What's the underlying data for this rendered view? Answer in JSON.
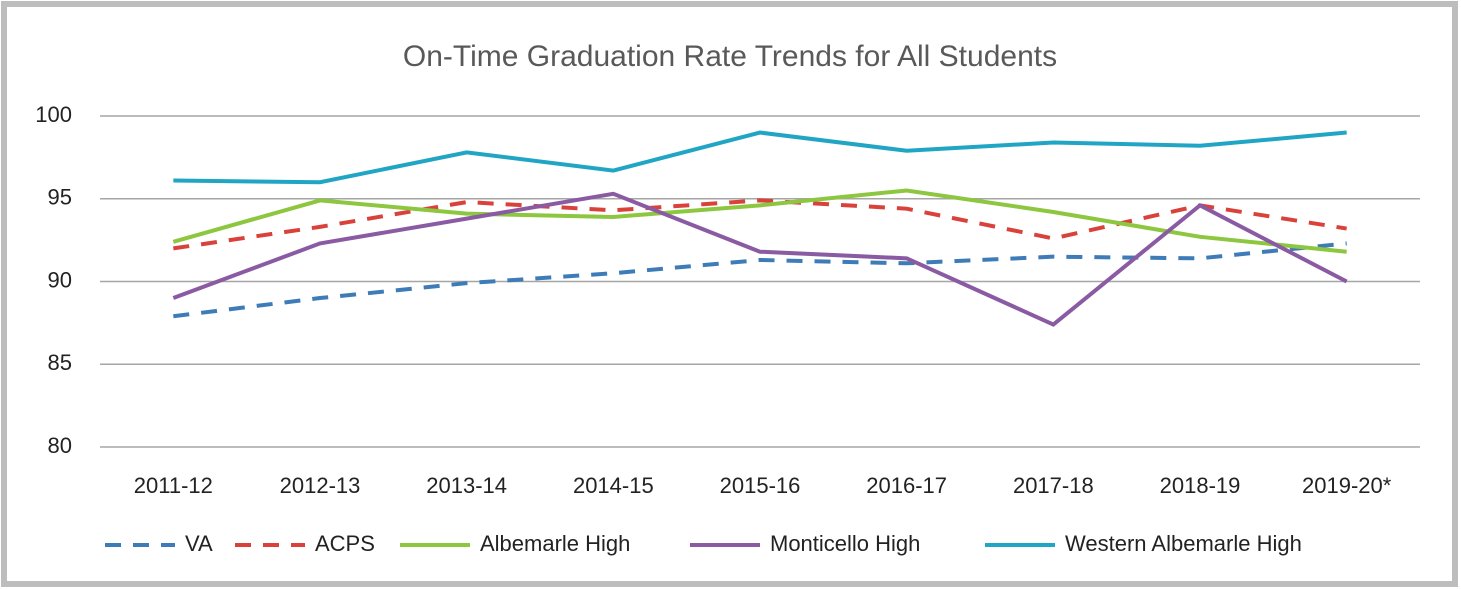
{
  "chart_data": {
    "type": "line",
    "title": "On-Time Graduation Rate Trends for All Students",
    "categories": [
      "2011-12",
      "2012-13",
      "2013-14",
      "2014-15",
      "2015-16",
      "2016-17",
      "2017-18",
      "2018-19",
      "2019-20*"
    ],
    "series": [
      {
        "name": "VA",
        "color": "#3e7cb8",
        "dashed": true,
        "values": [
          87.9,
          89.0,
          89.9,
          90.5,
          91.3,
          91.1,
          91.5,
          91.4,
          92.3
        ]
      },
      {
        "name": "ACPS",
        "color": "#d9423b",
        "dashed": true,
        "values": [
          92.0,
          93.3,
          94.8,
          94.3,
          94.9,
          94.4,
          92.6,
          94.6,
          93.2
        ]
      },
      {
        "name": "Albemarle High",
        "color": "#8dc63f",
        "dashed": false,
        "values": [
          92.4,
          94.9,
          94.1,
          93.9,
          94.6,
          95.5,
          94.2,
          92.7,
          91.8
        ]
      },
      {
        "name": "Monticello High",
        "color": "#8a5ba3",
        "dashed": false,
        "values": [
          89.0,
          92.3,
          93.8,
          95.3,
          91.8,
          91.4,
          87.4,
          94.6,
          90.0
        ]
      },
      {
        "name": "Western Albemarle High",
        "color": "#21a5c5",
        "dashed": false,
        "values": [
          96.1,
          96.0,
          97.8,
          96.7,
          99.0,
          97.9,
          98.4,
          98.2,
          99.0
        ]
      }
    ],
    "ylim": [
      80,
      100
    ],
    "yticks": [
      80,
      85,
      90,
      95,
      100
    ],
    "grid": true,
    "legend": "bottom"
  }
}
